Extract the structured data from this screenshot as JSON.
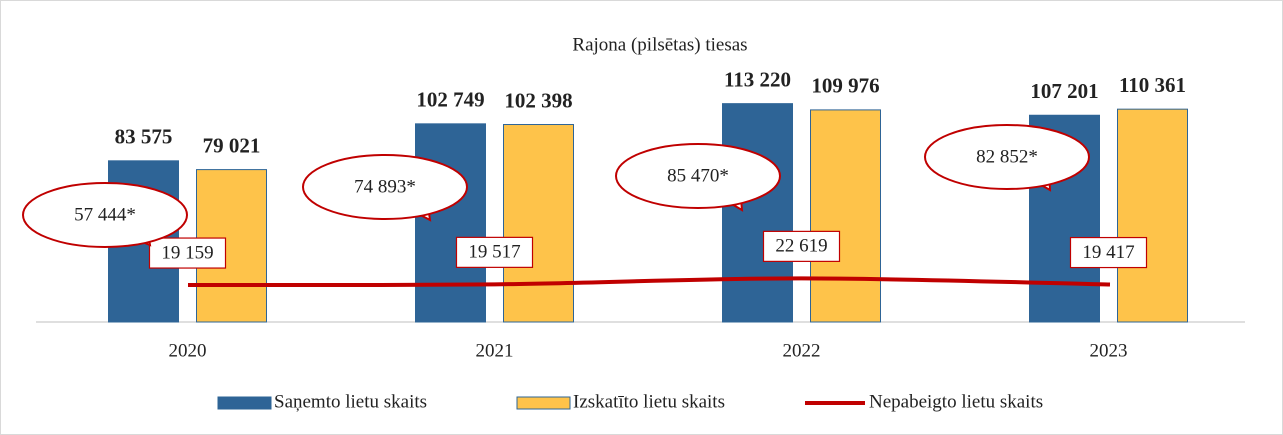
{
  "chart_data": {
    "type": "bar",
    "title": "Rajona (pilsētas) tiesas",
    "categories": [
      "2020",
      "2021",
      "2022",
      "2023"
    ],
    "series": [
      {
        "name": "Saņemto lietu skaits",
        "color": "#2e6496",
        "values": [
          83575,
          102749,
          113220,
          107201
        ],
        "value_labels": [
          "83 575",
          "102 749",
          "113 220",
          "107 201"
        ]
      },
      {
        "name": "Izskatīto lietu skaits",
        "color": "#fec34a",
        "values": [
          79021,
          102398,
          109976,
          110361
        ],
        "value_labels": [
          "79 021",
          "102 398",
          "109 976",
          "110 361"
        ]
      },
      {
        "name": "Nepabeigto lietu skaits",
        "type": "line",
        "color": "#c00000",
        "values": [
          19159,
          19517,
          22619,
          19417
        ],
        "value_labels": [
          "19 159",
          "19 517",
          "22 619",
          "19 417"
        ]
      }
    ],
    "annotations": [
      "57 444*",
      "74 893*",
      "85 470*",
      "82 852*"
    ],
    "ylim": [
      0,
      140000
    ],
    "legend": "bottom"
  }
}
